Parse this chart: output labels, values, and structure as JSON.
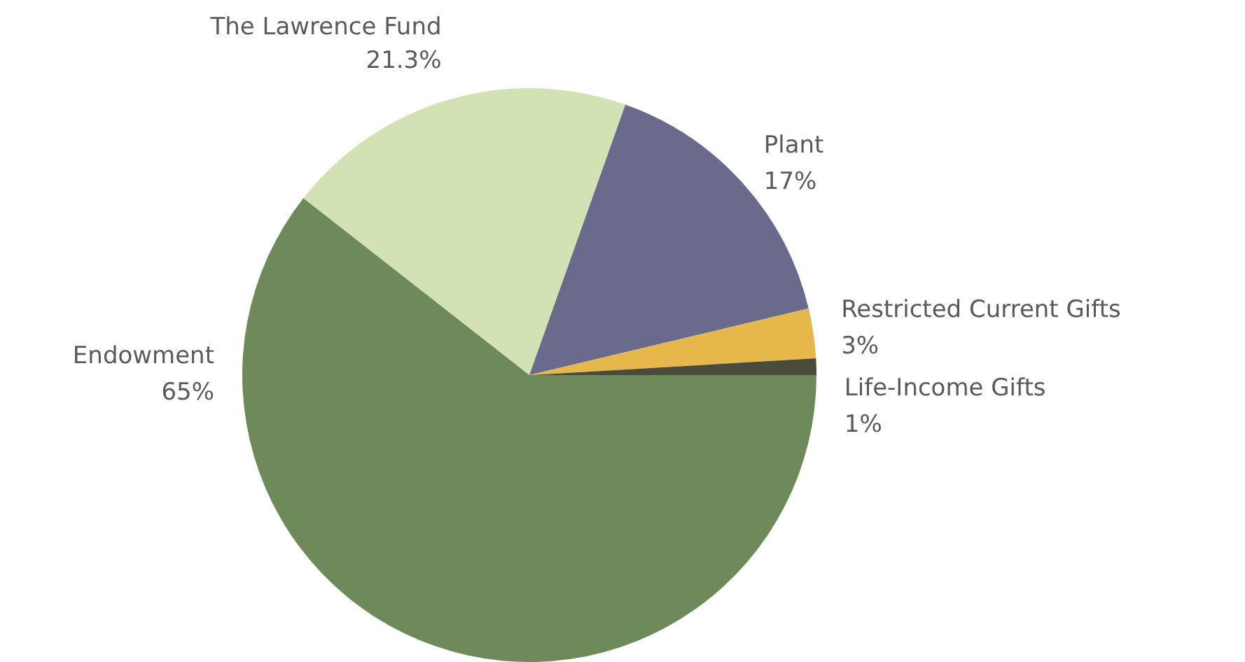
{
  "chart_data": {
    "type": "pie",
    "categories": [
      "The Lawrence Fund",
      "Plant",
      "Restricted Current Gifts",
      "Life-Income Gifts",
      "Endowment"
    ],
    "values": [
      21.3,
      17,
      3,
      1,
      65
    ],
    "value_labels": [
      "21.3%",
      "17%",
      "3%",
      "1%",
      "65%"
    ],
    "colors": [
      "#d3e2b4",
      "#6a6a8c",
      "#e6b84c",
      "#4b4b3c",
      "#6e8a5a"
    ]
  }
}
